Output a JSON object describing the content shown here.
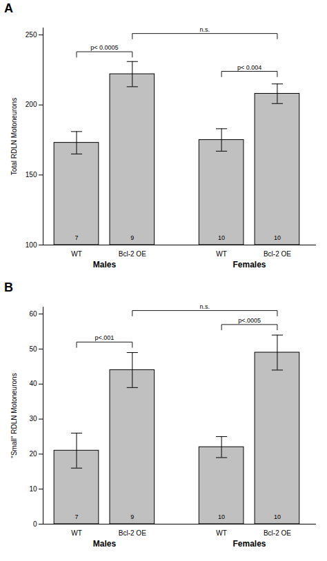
{
  "chart_data": [
    {
      "type": "bar",
      "title": "A",
      "y_label": "Total RDLN Motoneurons",
      "categories": [
        "WT",
        "Bcl-2 OE",
        "WT",
        "Bcl-2 OE"
      ],
      "groups": [
        "Males",
        "Males",
        "Females",
        "Females"
      ],
      "values": [
        173,
        222,
        175,
        208
      ],
      "errors": [
        8,
        9,
        8,
        7
      ],
      "n": [
        7,
        9,
        10,
        10
      ],
      "color": "#c0c0c0",
      "ylim": [
        100,
        255
      ],
      "yticks": [
        100,
        150,
        200,
        250
      ],
      "annotations": [
        {
          "type": "bracket",
          "from": 0,
          "to": 1,
          "y": 238,
          "label": "p< 0.0005"
        },
        {
          "type": "bracket",
          "from": 2,
          "to": 3,
          "y": 224,
          "label": "p< 0.004"
        },
        {
          "type": "bracket",
          "from": 1,
          "to": 3,
          "y": 251,
          "label": "n.s."
        }
      ]
    },
    {
      "type": "bar",
      "title": "B",
      "y_label": "\"Small\" RDLN Motoneurons",
      "categories": [
        "WT",
        "Bcl-2 OE",
        "WT",
        "Bcl-2 OE"
      ],
      "groups": [
        "Males",
        "Males",
        "Females",
        "Females"
      ],
      "values": [
        21,
        44,
        22,
        49
      ],
      "errors": [
        5,
        5,
        3,
        5
      ],
      "n": [
        7,
        9,
        10,
        10
      ],
      "color": "#c0c0c0",
      "ylim": [
        0,
        62
      ],
      "yticks": [
        0,
        10,
        20,
        30,
        40,
        50,
        60
      ],
      "annotations": [
        {
          "type": "bracket",
          "from": 0,
          "to": 1,
          "y": 52,
          "label": "p<.001"
        },
        {
          "type": "bracket",
          "from": 2,
          "to": 3,
          "y": 57,
          "label": "p<.0005"
        },
        {
          "type": "bracket",
          "from": 1,
          "to": 3,
          "y": 61,
          "label": "n.s."
        }
      ]
    }
  ]
}
